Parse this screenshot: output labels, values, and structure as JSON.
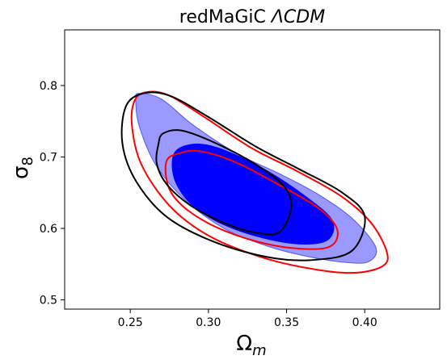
{
  "chart_data": {
    "type": "contour",
    "title": "redMaGiC ΛCDM",
    "title_parts": {
      "prefix": "redMaGiC ",
      "math": "ΛCDM"
    },
    "xlabel": "Ω_m",
    "xlabel_parts": {
      "base": "Ω",
      "sub": "m"
    },
    "ylabel": "σ_8",
    "ylabel_parts": {
      "base": "σ",
      "sub": "8"
    },
    "xlim": [
      0.208,
      0.448
    ],
    "ylim": [
      0.487,
      0.878
    ],
    "xticks": [
      0.25,
      0.3,
      0.35,
      0.4
    ],
    "xtick_labels": [
      "0.25",
      "0.30",
      "0.35",
      "0.40"
    ],
    "yticks": [
      0.5,
      0.6,
      0.7,
      0.8
    ],
    "ytick_labels": [
      "0.5",
      "0.6",
      "0.7",
      "0.8"
    ],
    "grid": false,
    "legend": "none",
    "series": [
      {
        "style": "filled",
        "levels": [
          {
            "level": "outer",
            "color": "#9999ff",
            "edge": "#5555ff",
            "points": [
              [
                0.2555,
                0.789
              ],
              [
                0.27,
                0.781
              ],
              [
                0.29,
                0.745
              ],
              [
                0.318,
                0.705
              ],
              [
                0.345,
                0.677
              ],
              [
                0.37,
                0.648
              ],
              [
                0.392,
                0.614
              ],
              [
                0.407,
                0.574
              ],
              [
                0.403,
                0.554
              ],
              [
                0.39,
                0.552
              ],
              [
                0.365,
                0.56
              ],
              [
                0.338,
                0.575
              ],
              [
                0.31,
                0.6
              ],
              [
                0.285,
                0.64
              ],
              [
                0.266,
                0.69
              ],
              [
                0.2555,
                0.745
              ],
              [
                0.2535,
                0.78
              ]
            ]
          },
          {
            "level": "inner",
            "color": "#0000ff",
            "edge": "#0000ff",
            "points": [
              [
                0.277,
                0.697
              ],
              [
                0.282,
                0.713
              ],
              [
                0.295,
                0.718
              ],
              [
                0.312,
                0.708
              ],
              [
                0.338,
                0.68
              ],
              [
                0.362,
                0.645
              ],
              [
                0.379,
                0.612
              ],
              [
                0.377,
                0.585
              ],
              [
                0.362,
                0.578
              ],
              [
                0.338,
                0.585
              ],
              [
                0.31,
                0.605
              ],
              [
                0.29,
                0.632
              ],
              [
                0.279,
                0.665
              ]
            ]
          }
        ]
      },
      {
        "style": "line",
        "color": "#ff0000",
        "levels": [
          {
            "level": "outer",
            "points": [
              [
                0.261,
                0.791
              ],
              [
                0.275,
                0.786
              ],
              [
                0.298,
                0.755
              ],
              [
                0.328,
                0.712
              ],
              [
                0.356,
                0.681
              ],
              [
                0.385,
                0.645
              ],
              [
                0.404,
                0.608
              ],
              [
                0.414,
                0.568
              ],
              [
                0.412,
                0.548
              ],
              [
                0.395,
                0.538
              ],
              [
                0.37,
                0.542
              ],
              [
                0.335,
                0.559
              ],
              [
                0.3,
                0.59
              ],
              [
                0.275,
                0.632
              ],
              [
                0.257,
                0.69
              ],
              [
                0.251,
                0.745
              ],
              [
                0.253,
                0.78
              ]
            ]
          },
          {
            "level": "inner",
            "points": [
              [
                0.273,
                0.693
              ],
              [
                0.281,
                0.705
              ],
              [
                0.295,
                0.708
              ],
              [
                0.318,
                0.692
              ],
              [
                0.346,
                0.66
              ],
              [
                0.37,
                0.629
              ],
              [
                0.382,
                0.601
              ],
              [
                0.38,
                0.578
              ],
              [
                0.367,
                0.571
              ],
              [
                0.34,
                0.577
              ],
              [
                0.31,
                0.597
              ],
              [
                0.287,
                0.625
              ],
              [
                0.275,
                0.655
              ]
            ]
          }
        ]
      },
      {
        "style": "line",
        "color": "#000000",
        "levels": [
          {
            "level": "outer",
            "points": [
              [
                0.247,
                0.77
              ],
              [
                0.258,
                0.789
              ],
              [
                0.275,
                0.786
              ],
              [
                0.3,
                0.756
              ],
              [
                0.33,
                0.715
              ],
              [
                0.358,
                0.683
              ],
              [
                0.385,
                0.651
              ],
              [
                0.4,
                0.617
              ],
              [
                0.392,
                0.569
              ],
              [
                0.368,
                0.556
              ],
              [
                0.34,
                0.559
              ],
              [
                0.305,
                0.58
              ],
              [
                0.274,
                0.615
              ],
              [
                0.254,
                0.665
              ],
              [
                0.245,
                0.718
              ]
            ]
          },
          {
            "level": "inner",
            "points": [
              [
                0.268,
                0.718
              ],
              [
                0.271,
                0.733
              ],
              [
                0.283,
                0.737
              ],
              [
                0.305,
                0.719
              ],
              [
                0.33,
                0.69
              ],
              [
                0.348,
                0.66
              ],
              [
                0.353,
                0.63
              ],
              [
                0.346,
                0.596
              ],
              [
                0.333,
                0.593
              ],
              [
                0.313,
                0.605
              ],
              [
                0.29,
                0.63
              ],
              [
                0.274,
                0.66
              ],
              [
                0.267,
                0.69
              ]
            ]
          }
        ]
      }
    ]
  }
}
